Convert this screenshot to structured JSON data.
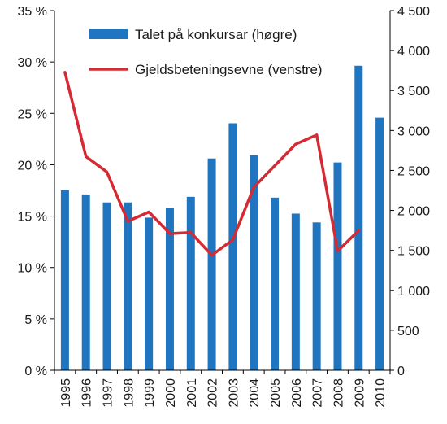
{
  "chart_data": {
    "type": "bar+line",
    "categories": [
      "1995",
      "1996",
      "1997",
      "1998",
      "1999",
      "2000",
      "2001",
      "2002",
      "2003",
      "2004",
      "2005",
      "2006",
      "2007",
      "2008",
      "2009",
      "2010"
    ],
    "series": [
      {
        "name": "Talet på konkursar (høgre)",
        "type": "bar",
        "axis": "right",
        "color": "#1f75bf",
        "values": [
          2250,
          2200,
          2100,
          2100,
          1910,
          2030,
          2170,
          2650,
          3090,
          2690,
          2160,
          1960,
          1850,
          2600,
          3810,
          3160
        ]
      },
      {
        "name": "Gjeldsbeteningsevne (venstre)",
        "type": "line",
        "axis": "left",
        "color": "#d42a33",
        "values": [
          29.0,
          20.8,
          19.3,
          14.5,
          15.4,
          13.3,
          13.4,
          11.2,
          12.7,
          17.8,
          19.9,
          22.0,
          22.9,
          11.6,
          13.6,
          null
        ]
      }
    ],
    "y_left": {
      "min": 0,
      "max": 35,
      "ticks": [
        "0 %",
        "5 %",
        "10 %",
        "15 %",
        "20 %",
        "25 %",
        "30 %",
        "35 %"
      ]
    },
    "y_right": {
      "min": 0,
      "max": 4500,
      "ticks": [
        "0",
        "500",
        "1 000",
        "1 500",
        "2 000",
        "2 500",
        "3 000",
        "3 500",
        "4 000",
        "4 500"
      ]
    },
    "legend": {
      "placement": "top-center"
    },
    "grid": false
  }
}
